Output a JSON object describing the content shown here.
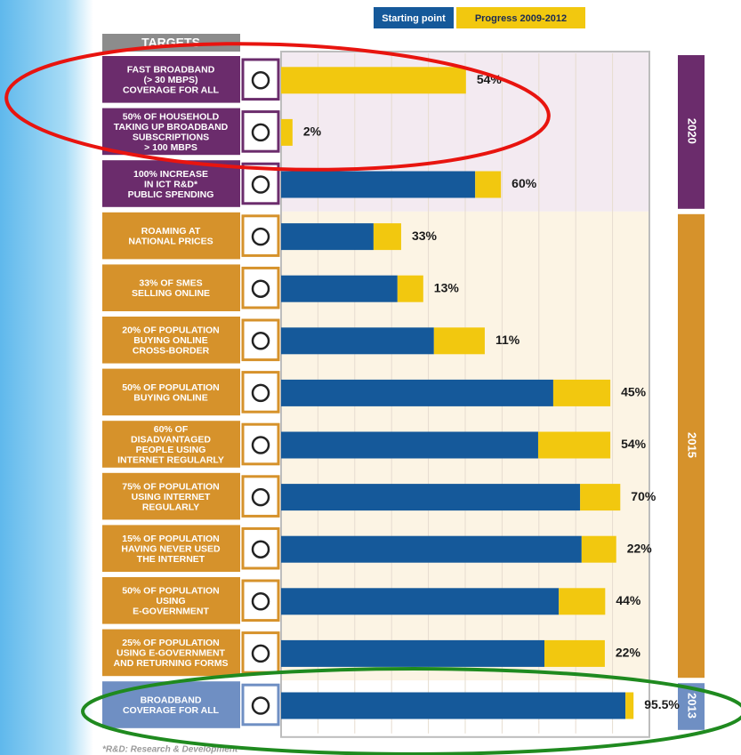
{
  "chart_data": {
    "type": "stacked-bar",
    "heading": "TARGETS",
    "footnote": "*R&D: Research & Development",
    "categories": [
      [
        "FAST BROADBAND",
        "(> 30 MBPS)",
        "COVERAGE FOR ALL"
      ],
      [
        "50% OF HOUSEHOLD",
        "TAKING UP BROADBAND",
        "SUBSCRIPTIONS",
        "> 100 MBPS"
      ],
      [
        "100% INCREASE",
        "IN ICT R&D*",
        "PUBLIC SPENDING"
      ],
      [
        "ROAMING AT",
        "NATIONAL PRICES"
      ],
      [
        "33% OF SMES",
        "SELLING ONLINE"
      ],
      [
        "20% OF POPULATION",
        "BUYING ONLINE",
        "CROSS-BORDER"
      ],
      [
        "50% OF POPULATION",
        "BUYING ONLINE"
      ],
      [
        "60% OF",
        "DISADVANTAGED",
        "PEOPLE USING",
        "INTERNET REGULARLY"
      ],
      [
        "75% OF POPULATION",
        "USING INTERNET",
        "REGULARLY"
      ],
      [
        "15% OF POPULATION",
        "HAVING NEVER USED",
        "THE INTERNET"
      ],
      [
        "50% OF POPULATION",
        "USING",
        "E-GOVERNMENT"
      ],
      [
        "25% OF POPULATION",
        "USING E-GOVERNMENT",
        "AND RETURNING FORMS"
      ],
      [
        "BROADBAND",
        "COVERAGE FOR ALL"
      ]
    ],
    "periods": [
      "2020",
      "2020",
      "2020",
      "2015",
      "2015",
      "2015",
      "2015",
      "2015",
      "2015",
      "2015",
      "2015",
      "2015",
      "2013"
    ],
    "period_colors": {
      "2020": "#6b2c6c",
      "2015": "#d6922b",
      "2013": "#6f8fc3"
    },
    "period_backgrounds": {
      "2020": "#f3eaf1",
      "2015": "#fcf4e4",
      "2013": "#ffffff"
    },
    "xlim": [
      0,
      100
    ],
    "series": [
      {
        "name": "Starting point",
        "color": "#15599a",
        "values": [
          0,
          0,
          52.7,
          25.1,
          31.6,
          41.5,
          73.9,
          69.8,
          81.2,
          81.6,
          75.4,
          71.5,
          93.5
        ]
      },
      {
        "name": "Progress 2009-2012",
        "color": "#f2c80f",
        "values": [
          50.2,
          3.1,
          7.0,
          7.5,
          7.0,
          13.8,
          15.5,
          19.6,
          10.9,
          9.4,
          12.6,
          16.4,
          2.2
        ]
      }
    ],
    "progress_labels": [
      "54%",
      "2%",
      "60%",
      "33%",
      "13%",
      "11%",
      "45%",
      "54%",
      "70%",
      "22%",
      "44%",
      "22%",
      "95.5%"
    ]
  }
}
